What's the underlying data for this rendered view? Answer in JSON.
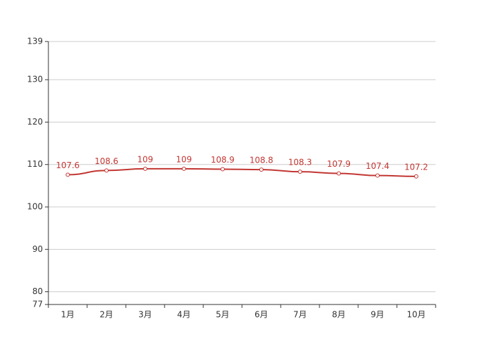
{
  "chart_data": {
    "type": "line",
    "categories": [
      "1月",
      "2月",
      "3月",
      "4月",
      "5月",
      "6月",
      "7月",
      "8月",
      "9月",
      "10月"
    ],
    "series": [
      {
        "color": "#c23531",
        "values": [
          107.6,
          108.6,
          109,
          109,
          108.9,
          108.8,
          108.3,
          107.9,
          107.4,
          107.2
        ]
      }
    ],
    "ylim": [
      77,
      139
    ],
    "yticks": [
      77,
      80,
      90,
      100,
      110,
      120,
      130,
      139
    ],
    "grid": true
  }
}
